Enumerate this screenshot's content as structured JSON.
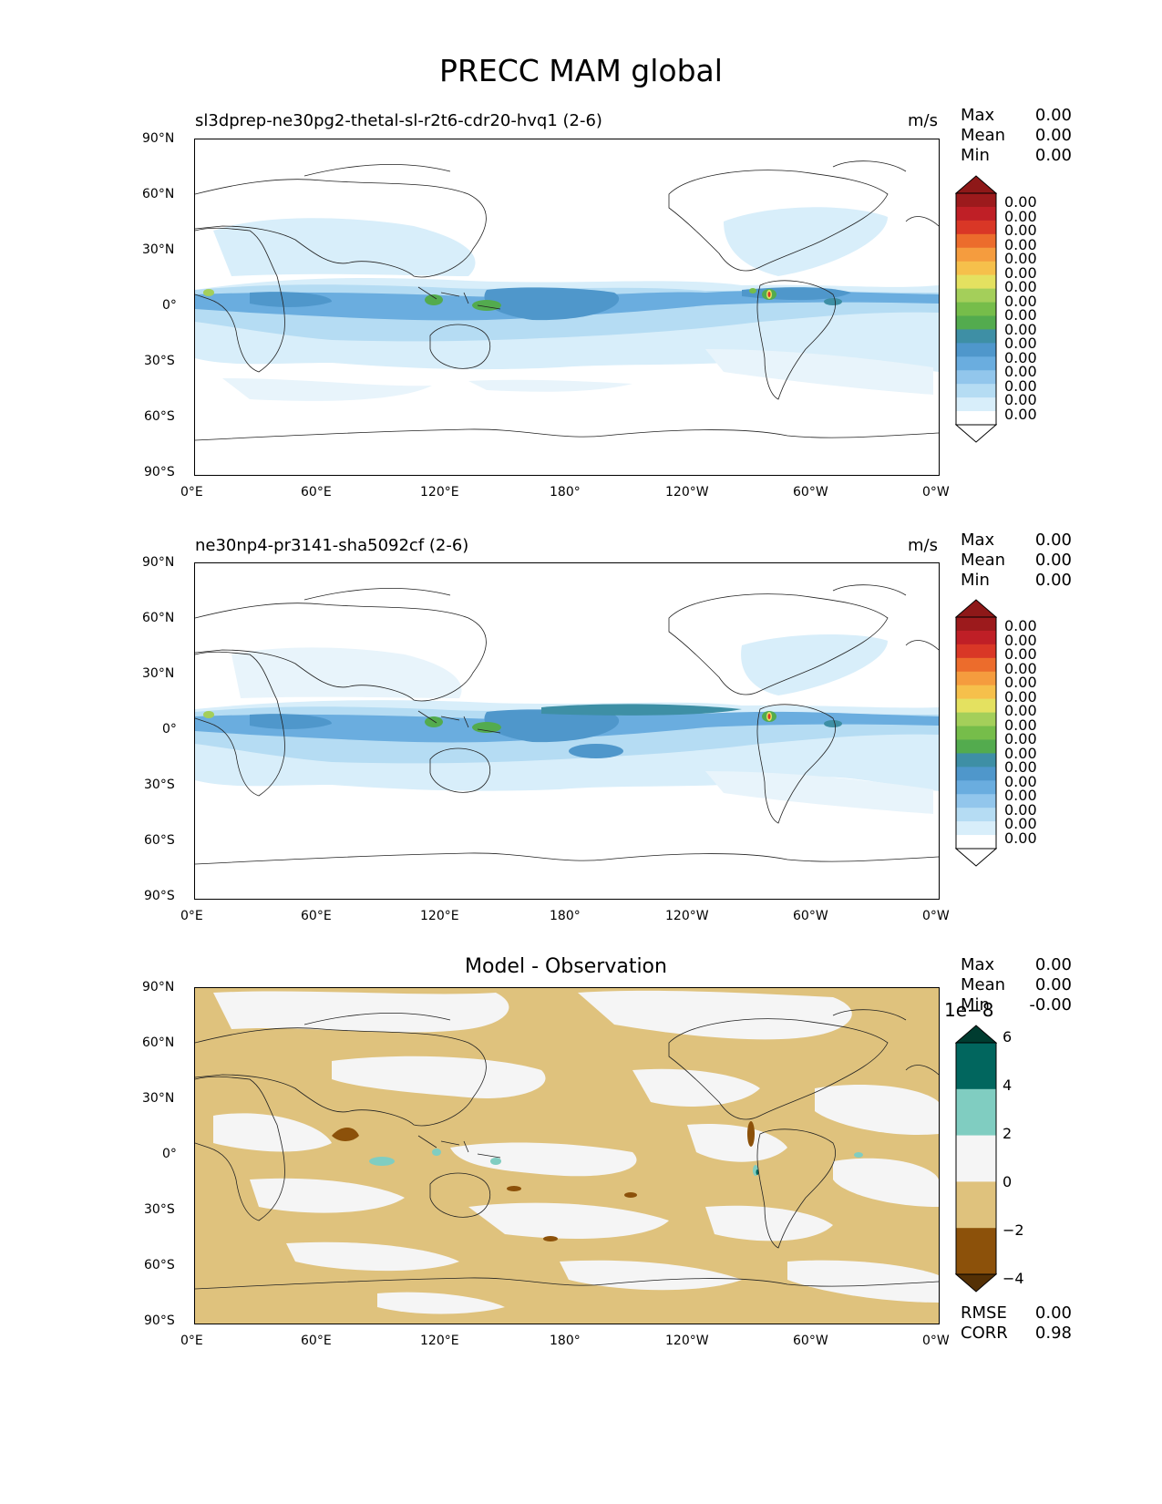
{
  "title": "PRECC MAM global",
  "x_ticks": [
    "0°E",
    "60°E",
    "120°E",
    "180°",
    "120°W",
    "60°W",
    "0°W"
  ],
  "y_ticks": [
    "90°N",
    "60°N",
    "30°N",
    "0°",
    "30°S",
    "60°S",
    "90°S"
  ],
  "panels": [
    {
      "title": "sl3dprep-ne30pg2-thetal-sl-r2t6-cdr20-hvq1 (2-6)",
      "units": "m/s",
      "stats": [
        {
          "label": "Max",
          "value": "0.00"
        },
        {
          "label": "Mean",
          "value": "0.00"
        },
        {
          "label": "Min",
          "value": "0.00"
        }
      ],
      "colorbar_labels": [
        "0.00",
        "0.00",
        "0.00",
        "0.00",
        "0.00",
        "0.00",
        "0.00",
        "0.00",
        "0.00",
        "0.00",
        "0.00",
        "0.00",
        "0.00",
        "0.00",
        "0.00",
        "0.00"
      ]
    },
    {
      "title": "ne30np4-pr3141-sha5092cf (2-6)",
      "units": "m/s",
      "stats": [
        {
          "label": "Max",
          "value": "0.00"
        },
        {
          "label": "Mean",
          "value": "0.00"
        },
        {
          "label": "Min",
          "value": "0.00"
        }
      ],
      "colorbar_labels": [
        "0.00",
        "0.00",
        "0.00",
        "0.00",
        "0.00",
        "0.00",
        "0.00",
        "0.00",
        "0.00",
        "0.00",
        "0.00",
        "0.00",
        "0.00",
        "0.00",
        "0.00",
        "0.00"
      ]
    },
    {
      "title": "Model - Observation",
      "stats": [
        {
          "label": "Max",
          "value": "0.00"
        },
        {
          "label": "Mean",
          "value": "0.00"
        },
        {
          "label": "Min",
          "value": "-0.00"
        }
      ],
      "colorbar_exponent": "1e−8",
      "colorbar_labels": [
        "6",
        "4",
        "2",
        "0",
        "−2",
        "−4"
      ],
      "metrics": [
        {
          "label": "RMSE",
          "value": "0.00"
        },
        {
          "label": "CORR",
          "value": "0.98"
        }
      ]
    }
  ],
  "colors": {
    "precip_scale": [
      "#ffffff",
      "#d8eefa",
      "#b5dcf3",
      "#92c6ec",
      "#6aaddf",
      "#4f97cb",
      "#3e8fa5",
      "#53ab4e",
      "#76bd4a",
      "#a4cf5a",
      "#e4e160",
      "#f6c04b",
      "#f59c3e",
      "#ec6c2c",
      "#d93726",
      "#bf1f26",
      "#9c1a1c"
    ],
    "precip_under": "#ffffff",
    "precip_over": "#8e1818",
    "diff_scale": [
      "#8c510a",
      "#dfc27d",
      "#f5f5f5",
      "#80cdc1",
      "#01665e"
    ],
    "diff_under": "#543005",
    "diff_over": "#003c30"
  }
}
